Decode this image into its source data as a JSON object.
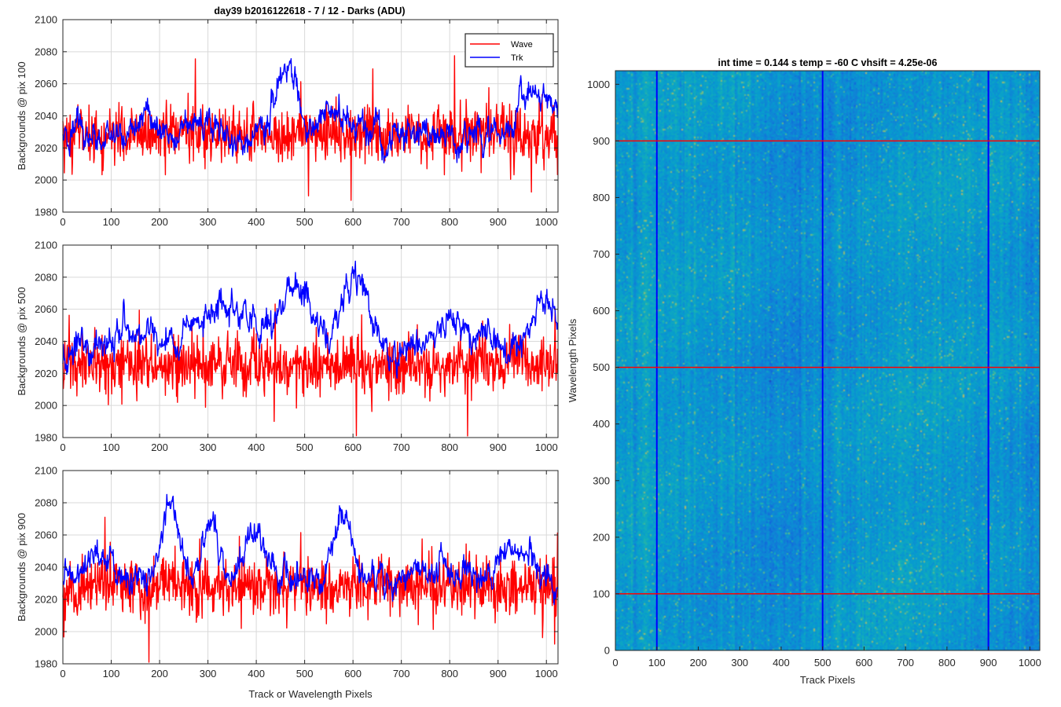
{
  "figure": {
    "suptitle": "day39 b2016122618 - 7 / 12 - Darks (ADU)",
    "shared_xlabel": "Track or Wavelength Pixels"
  },
  "colors": {
    "wave": "#ff0000",
    "trk": "#0000ff",
    "grid": "#d9d9d9",
    "axis": "#262626"
  },
  "chart_data": [
    {
      "type": "line",
      "ylabel": "Backgrounds @ pix 100",
      "xlim": [
        0,
        1024
      ],
      "ylim": [
        1980,
        2100
      ],
      "xticks": [
        0,
        100,
        200,
        300,
        400,
        500,
        600,
        700,
        800,
        900,
        1000
      ],
      "yticks": [
        1980,
        2000,
        2020,
        2040,
        2060,
        2080,
        2100
      ],
      "grid": true,
      "legend": {
        "position": "top-right",
        "entries": [
          "Wave",
          "Trk"
        ]
      },
      "series": [
        {
          "name": "Wave",
          "color": "#ff0000",
          "mean": 2028,
          "noise": 9,
          "bumps": []
        },
        {
          "name": "Trk",
          "color": "#0000ff",
          "mean": 2027,
          "noise": 5,
          "bumps": [
            [
              160,
              30,
              10
            ],
            [
              300,
              20,
              14
            ],
            [
              460,
              22,
              40
            ],
            [
              560,
              30,
              16
            ],
            [
              980,
              35,
              25
            ]
          ]
        }
      ]
    },
    {
      "type": "line",
      "ylabel": "Backgrounds @ pix 500",
      "xlim": [
        0,
        1024
      ],
      "ylim": [
        1980,
        2100
      ],
      "xticks": [
        0,
        100,
        200,
        300,
        400,
        500,
        600,
        700,
        800,
        900,
        1000
      ],
      "yticks": [
        1980,
        2000,
        2020,
        2040,
        2060,
        2080,
        2100
      ],
      "grid": true,
      "series": [
        {
          "name": "Wave",
          "color": "#ff0000",
          "mean": 2025,
          "noise": 9,
          "bumps": []
        },
        {
          "name": "Trk",
          "color": "#0000ff",
          "mean": 2032,
          "noise": 5,
          "bumps": [
            [
              150,
              45,
              15
            ],
            [
              300,
              40,
              18
            ],
            [
              360,
              30,
              22
            ],
            [
              480,
              35,
              45
            ],
            [
              605,
              25,
              48
            ],
            [
              800,
              45,
              16
            ],
            [
              1000,
              35,
              30
            ]
          ]
        }
      ]
    },
    {
      "type": "line",
      "ylabel": "Backgrounds @ pix 900",
      "xlim": [
        0,
        1024
      ],
      "ylim": [
        1980,
        2100
      ],
      "xticks": [
        0,
        100,
        200,
        300,
        400,
        500,
        600,
        700,
        800,
        900,
        1000
      ],
      "yticks": [
        1980,
        2000,
        2020,
        2040,
        2060,
        2080,
        2100
      ],
      "grid": true,
      "series": [
        {
          "name": "Wave",
          "color": "#ff0000",
          "mean": 2028,
          "noise": 9,
          "bumps": []
        },
        {
          "name": "Trk",
          "color": "#0000ff",
          "mean": 2030,
          "noise": 5,
          "bumps": [
            [
              75,
              30,
              20
            ],
            [
              220,
              22,
              45
            ],
            [
              305,
              18,
              38
            ],
            [
              400,
              25,
              35
            ],
            [
              580,
              18,
              45
            ],
            [
              780,
              45,
              14
            ],
            [
              930,
              30,
              25
            ]
          ]
        }
      ]
    },
    {
      "type": "heatmap",
      "title": "int time = 0.144 s   temp = -60 C   vhsift = 4.25e-06",
      "xlabel": "Track Pixels",
      "ylabel": "Wavelength Pixels",
      "xlim": [
        0,
        1024
      ],
      "ylim": [
        0,
        1024
      ],
      "xticks": [
        0,
        100,
        200,
        300,
        400,
        500,
        600,
        700,
        800,
        900,
        1000
      ],
      "yticks": [
        0,
        100,
        200,
        300,
        400,
        500,
        600,
        700,
        800,
        900,
        1000
      ],
      "colormap": "parula",
      "vertical_markers": {
        "x": [
          100,
          500,
          900
        ],
        "color": "#0000ff"
      },
      "horizontal_markers": {
        "y": [
          100,
          500,
          900
        ],
        "color": "#ff0000"
      }
    }
  ]
}
